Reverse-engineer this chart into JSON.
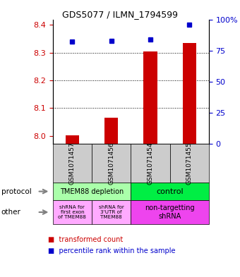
{
  "title": "GDS5077 / ILMN_1794599",
  "samples": [
    "GSM1071457",
    "GSM1071456",
    "GSM1071454",
    "GSM1071455"
  ],
  "transformed_counts": [
    8.002,
    8.065,
    8.305,
    8.335
  ],
  "percentile_ranks": [
    82,
    83,
    84,
    96
  ],
  "ylim_left": [
    7.97,
    8.42
  ],
  "ylim_right": [
    0,
    100
  ],
  "yticks_left": [
    8.0,
    8.1,
    8.2,
    8.3,
    8.4
  ],
  "yticks_right": [
    0,
    25,
    50,
    75,
    100
  ],
  "ytick_labels_right": [
    "0",
    "25",
    "50",
    "75",
    "100%"
  ],
  "bar_color": "#cc0000",
  "dot_color": "#0000cc",
  "left_tick_color": "#cc0000",
  "right_tick_color": "#0000cc",
  "protocol_labels": [
    "TMEM88 depletion",
    "control"
  ],
  "protocol_colors": [
    "#aaffaa",
    "#00ee44"
  ],
  "other_labels": [
    "shRNA for\nfirst exon\nof TMEM88",
    "shRNA for\n3'UTR of\nTMEM88",
    "non-targetting\nshRNA"
  ],
  "other_colors": [
    "#ffaaff",
    "#ffaaff",
    "#ee44ee"
  ],
  "sample_bg_color": "#cccccc",
  "legend_red_label": "transformed count",
  "legend_blue_label": "percentile rank within the sample"
}
